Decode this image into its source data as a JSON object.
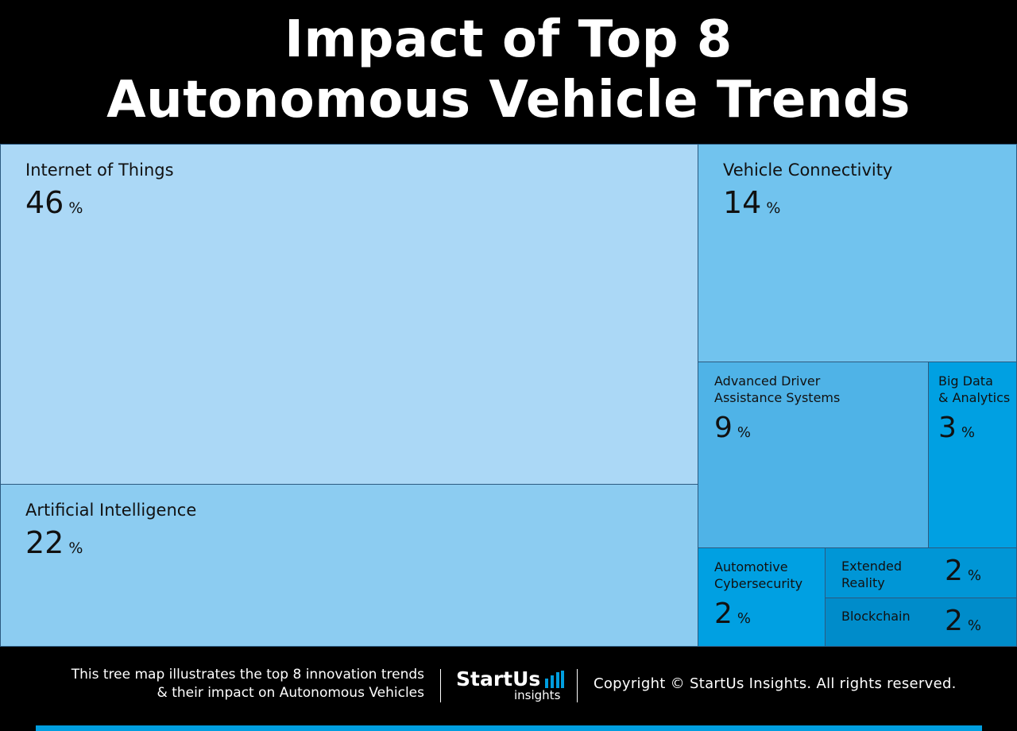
{
  "title": {
    "line1": "Impact of Top 8",
    "line2": "Autonomous Vehicle Trends"
  },
  "chart_data": {
    "type": "treemap",
    "title": "Impact of Top 8 Autonomous Vehicle Trends",
    "unit": "%",
    "items": [
      {
        "name": "Internet of Things",
        "label": "Internet of Things",
        "value": 46,
        "color": "#abd8f6"
      },
      {
        "name": "Artificial Intelligence",
        "label": "Artificial Intelligence",
        "value": 22,
        "color": "#8cccf1"
      },
      {
        "name": "Vehicle Connectivity",
        "label": "Vehicle Connectivity",
        "value": 14,
        "color": "#71c3ee"
      },
      {
        "name": "Advanced Driver Assistance Systems",
        "label": "Advanced Driver\nAssistance Systems",
        "value": 9,
        "color": "#4fb3e7"
      },
      {
        "name": "Big Data & Analytics",
        "label": "Big Data\n& Analytics",
        "value": 3,
        "color": "#00a0e2"
      },
      {
        "name": "Automotive Cybersecurity",
        "label": "Automotive\nCybersecurity",
        "value": 2,
        "color": "#00a0e2"
      },
      {
        "name": "Extended Reality",
        "label": "Extended\nReality",
        "value": 2,
        "color": "#0096d6"
      },
      {
        "name": "Blockchain",
        "label": "Blockchain",
        "value": 2,
        "color": "#008cca"
      }
    ]
  },
  "footer": {
    "description": "This tree map illustrates the top 8 innovation trends\n& their impact on Autonomous Vehicles",
    "logo_brand": "StartUs",
    "logo_sub": "insights",
    "copyright": "Copyright © StartUs Insights. All rights reserved."
  },
  "colors": {
    "background": "#000000",
    "accent_bar": "#009edf",
    "tile_border": "#2c5a80"
  }
}
